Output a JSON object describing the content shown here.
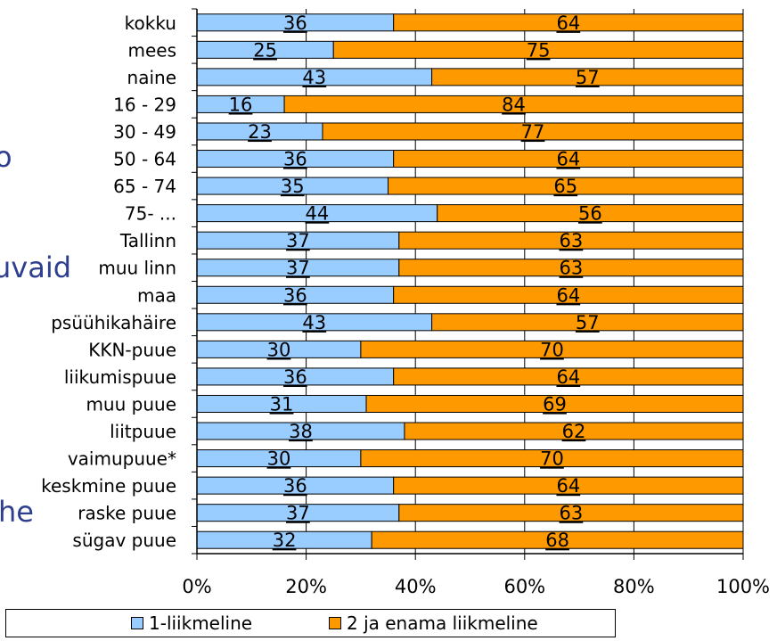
{
  "background_fragments": {
    "frag1": "o",
    "frag2": "uvaid",
    "frag3": "he"
  },
  "colors": {
    "series1": "#99ccff",
    "series2": "#ff9900",
    "axis": "#000000",
    "grid": "#000000"
  },
  "chart_data": {
    "type": "bar",
    "orientation": "horizontal",
    "stacked": "percent",
    "title": "",
    "xlabel": "",
    "ylabel": "",
    "xlim": [
      0,
      100
    ],
    "x_ticks": [
      "0%",
      "20%",
      "40%",
      "60%",
      "80%",
      "100%"
    ],
    "grid": true,
    "legend_position": "bottom",
    "categories": [
      "kokku",
      "mees",
      "naine",
      "16 - 29",
      "30 - 49",
      "50 - 64",
      "65 - 74",
      "75- ...",
      "Tallinn",
      "muu linn",
      "maa",
      "psüühikahäire",
      "KKN-puue",
      "liikumispuue",
      "muu puue",
      "liitpuue",
      "vaimupuue*",
      "keskmine puue",
      "raske puue",
      "sügav puue"
    ],
    "series": [
      {
        "name": "1-liikmeline",
        "values": [
          36,
          25,
          43,
          16,
          23,
          36,
          35,
          44,
          37,
          37,
          36,
          43,
          30,
          36,
          31,
          38,
          30,
          36,
          37,
          32
        ]
      },
      {
        "name": "2 ja enama liikmeline",
        "values": [
          64,
          75,
          57,
          84,
          77,
          64,
          65,
          56,
          63,
          63,
          64,
          57,
          70,
          64,
          69,
          62,
          70,
          64,
          63,
          68
        ]
      }
    ]
  }
}
